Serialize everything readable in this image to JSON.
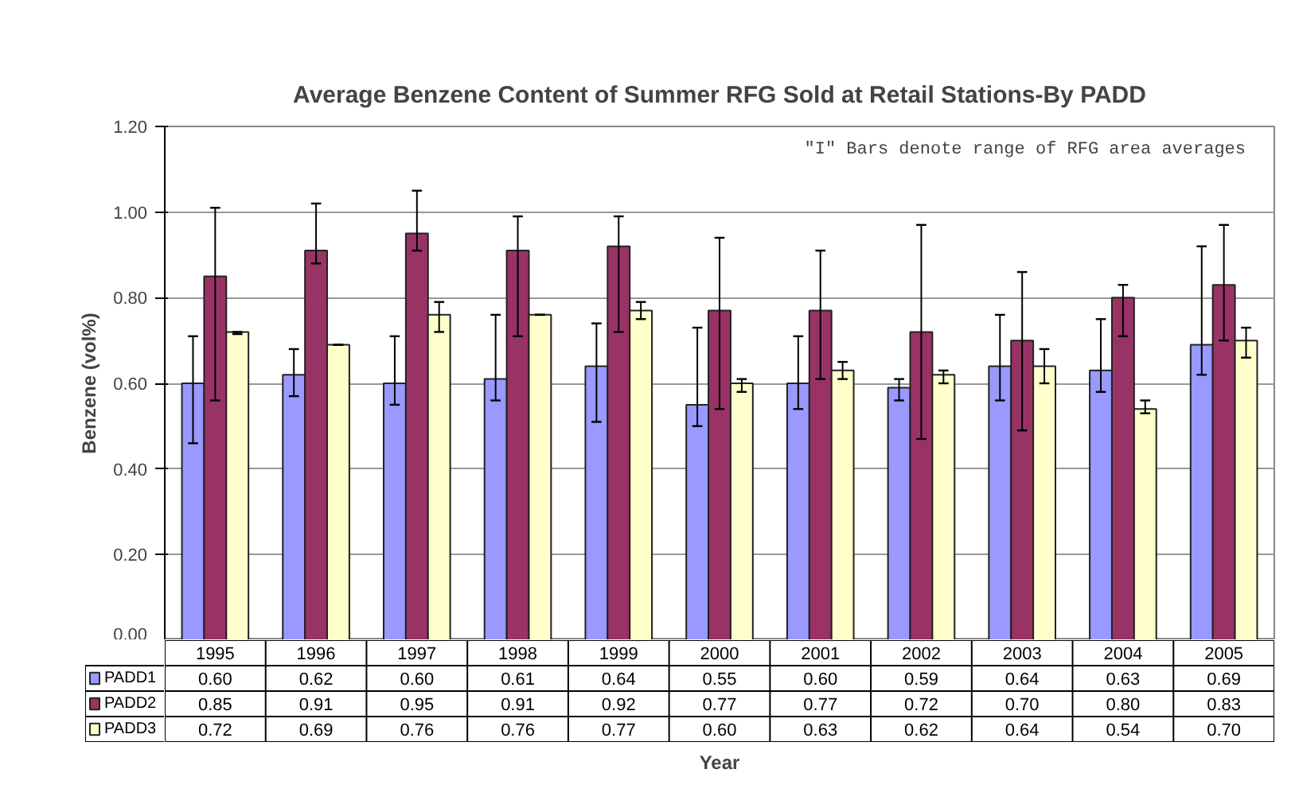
{
  "chart_data": {
    "type": "bar",
    "title": "Average Benzene Content of Summer RFG Sold at Retail Stations-By PADD",
    "xlabel": "Year",
    "ylabel": "Benzene (vol%)",
    "annotations": [
      "\"I\" Bars denote range of RFG area averages"
    ],
    "categories": [
      "1995",
      "1996",
      "1997",
      "1998",
      "1999",
      "2000",
      "2001",
      "2002",
      "2003",
      "2004",
      "2005"
    ],
    "series": [
      {
        "name": "PADD1",
        "color": "#9999ff",
        "values": [
          0.6,
          0.62,
          0.6,
          0.61,
          0.64,
          0.55,
          0.6,
          0.59,
          0.64,
          0.63,
          0.69
        ],
        "value_labels": [
          "0.60",
          "0.62",
          "0.60",
          "0.61",
          "0.64",
          "0.55",
          "0.60",
          "0.59",
          "0.64",
          "0.63",
          "0.69"
        ],
        "errors": [
          [
            0.46,
            0.71
          ],
          [
            0.57,
            0.68
          ],
          [
            0.55,
            0.71
          ],
          [
            0.56,
            0.76
          ],
          [
            0.51,
            0.74
          ],
          [
            0.5,
            0.73
          ],
          [
            0.54,
            0.71
          ],
          [
            0.56,
            0.61
          ],
          [
            0.56,
            0.76
          ],
          [
            0.58,
            0.75
          ],
          [
            0.62,
            0.92
          ]
        ]
      },
      {
        "name": "PADD2",
        "color": "#993366",
        "values": [
          0.85,
          0.91,
          0.95,
          0.91,
          0.92,
          0.77,
          0.77,
          0.72,
          0.7,
          0.8,
          0.83
        ],
        "value_labels": [
          "0.85",
          "0.91",
          "0.95",
          "0.91",
          "0.92",
          "0.77",
          "0.77",
          "0.72",
          "0.70",
          "0.80",
          "0.83"
        ],
        "errors": [
          [
            0.56,
            1.01
          ],
          [
            0.88,
            1.02
          ],
          [
            0.91,
            1.05
          ],
          [
            0.71,
            0.99
          ],
          [
            0.72,
            0.99
          ],
          [
            0.54,
            0.94
          ],
          [
            0.61,
            0.91
          ],
          [
            0.47,
            0.97
          ],
          [
            0.49,
            0.86
          ],
          [
            0.71,
            0.83
          ],
          [
            0.7,
            0.97
          ]
        ]
      },
      {
        "name": "PADD3",
        "color": "#ffffcc",
        "values": [
          0.72,
          0.69,
          0.76,
          0.76,
          0.77,
          0.6,
          0.63,
          0.62,
          0.64,
          0.54,
          0.7
        ],
        "value_labels": [
          "0.72",
          "0.69",
          "0.76",
          "0.76",
          "0.77",
          "0.60",
          "0.63",
          "0.62",
          "0.64",
          "0.54",
          "0.70"
        ],
        "errors": [
          [
            0.715,
            0.72
          ],
          [
            0.69,
            0.69
          ],
          [
            0.72,
            0.79
          ],
          [
            0.76,
            0.76
          ],
          [
            0.75,
            0.79
          ],
          [
            0.58,
            0.61
          ],
          [
            0.61,
            0.65
          ],
          [
            0.6,
            0.63
          ],
          [
            0.6,
            0.68
          ],
          [
            0.53,
            0.56
          ],
          [
            0.66,
            0.73
          ]
        ]
      }
    ],
    "ylim": [
      0,
      1.2
    ],
    "yticks": [
      {
        "value": 0,
        "label": "0.00"
      },
      {
        "value": 0.2,
        "label": "0.20"
      },
      {
        "value": 0.4,
        "label": "0.40"
      },
      {
        "value": 0.6,
        "label": "0.60"
      },
      {
        "value": 0.8,
        "label": "0.80"
      },
      {
        "value": 1.0,
        "label": "1.00"
      },
      {
        "value": 1.2,
        "label": "1.20"
      }
    ],
    "grid": "y",
    "legend": "bottom"
  }
}
